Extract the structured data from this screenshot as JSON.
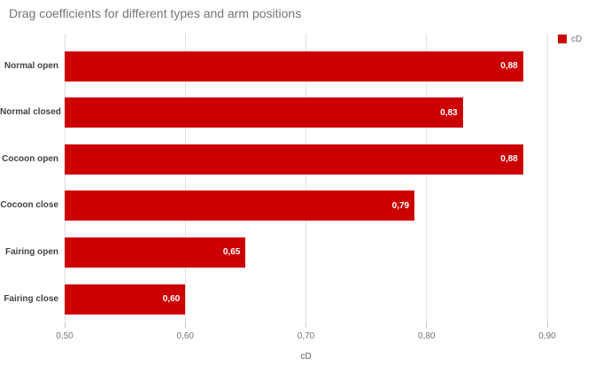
{
  "title": "Drag coefficients for different types and arm positions",
  "legend": {
    "label": "cD",
    "swatch_color": "#cc0000"
  },
  "xaxis": {
    "title": "cD"
  },
  "colors": {
    "bar": "#cc0000",
    "value_text": "#ffffff",
    "title_text": "#757575",
    "category_text": "#424242",
    "tick_text": "#757575",
    "gridline": "#e0e0e0"
  },
  "chart_data": {
    "type": "bar",
    "orientation": "horizontal",
    "title": "Drag coefficients for different types and arm positions",
    "categories": [
      "Normal open",
      "Normal closed",
      "Cocoon open",
      "Cocoon close",
      "Fairing open",
      "Fairing close"
    ],
    "series": [
      {
        "name": "cD",
        "values": [
          0.88,
          0.83,
          0.88,
          0.79,
          0.65,
          0.6
        ],
        "value_labels": [
          "0,88",
          "0,83",
          "0,88",
          "0,79",
          "0,65",
          "0,60"
        ],
        "color": "#cc0000"
      }
    ],
    "xlabel": "cD",
    "ylabel": "",
    "xlim": [
      0.5,
      0.9
    ],
    "x_ticks": [
      0.5,
      0.6,
      0.7,
      0.8,
      0.9
    ],
    "x_tick_labels": [
      "0,50",
      "0,60",
      "0,70",
      "0,80",
      "0,90"
    ],
    "grid": true,
    "value_labels_position": "inside-end",
    "legend_position": "top-right"
  }
}
